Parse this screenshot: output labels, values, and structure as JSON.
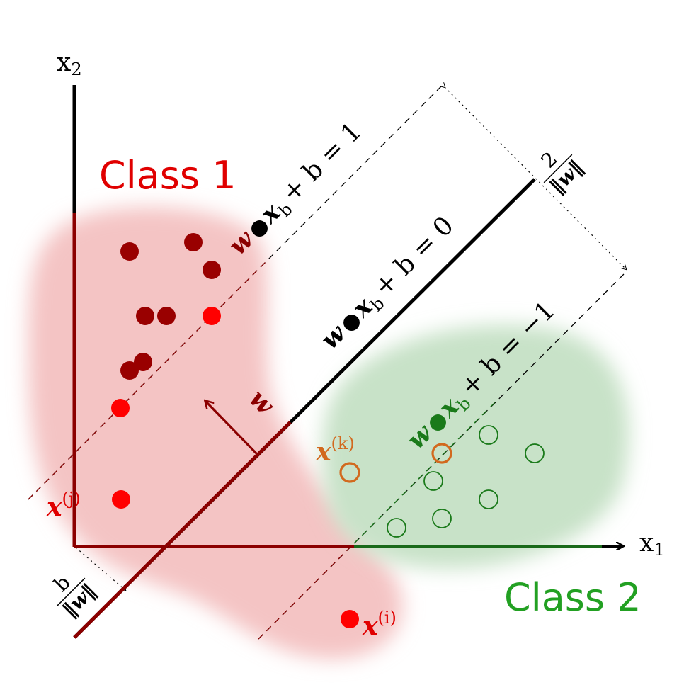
{
  "colors": {
    "class1_region": "#f4c4c4",
    "class2_region": "#c8e2c8",
    "class1_point_dark": "#990000",
    "class1_point_bright": "#ff0000",
    "class2_point": "#1a7a1a",
    "support_highlight": "#d2691e",
    "class1_text": "#e00000",
    "class2_text": "#22a022",
    "hyperplane": "#000000",
    "normal_vector": "#8b0000"
  },
  "labels": {
    "class1": "Class 1",
    "class2": "Class 2",
    "x1_base": "x",
    "x1_sub": "1",
    "x2_base": "x",
    "x2_sub": "2"
  },
  "equations": {
    "upper": {
      "w": "w",
      "x": "x",
      "sub": "b",
      "rest": "+ b = 1"
    },
    "middle": {
      "w": "w",
      "x": "x",
      "sub": "b",
      "rest": "+ b = 0"
    },
    "lower": {
      "w": "w",
      "x": "x",
      "sub": "b",
      "rest": "+ b = −1"
    }
  },
  "annotations": {
    "margin_num": "2",
    "margin_den": "‖w‖",
    "offset_num": "b",
    "offset_den": "‖w‖",
    "normal": "w",
    "xj_base": "x",
    "xj_sup": "(j)",
    "xi_base": "x",
    "xi_sup": "(i)",
    "xk_base": "x",
    "xk_sup": "(k)"
  }
}
